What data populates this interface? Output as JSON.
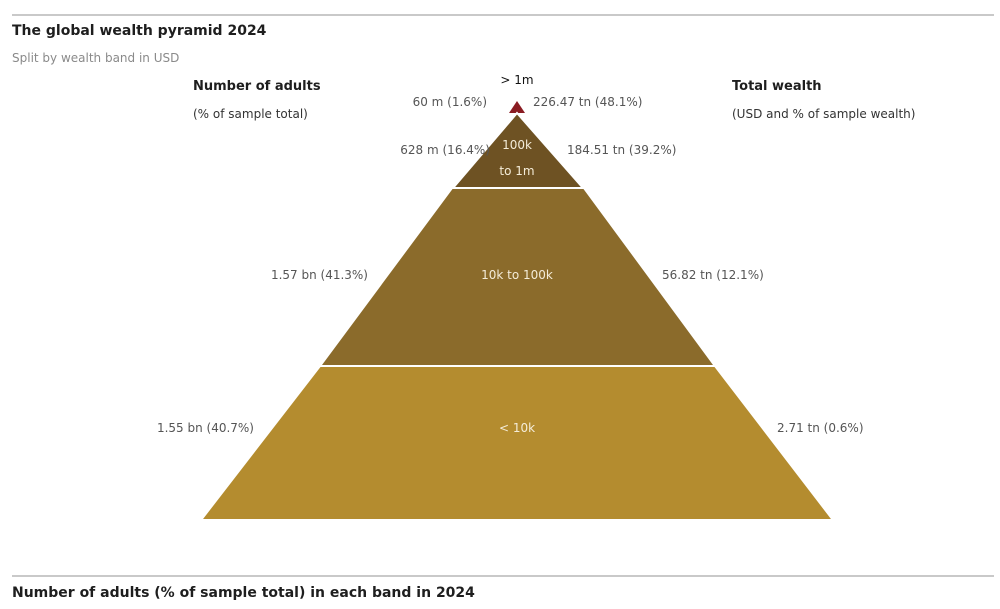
{
  "header": {
    "title": "The global wealth pyramid 2024",
    "subtitle": "Split by wealth band in USD"
  },
  "left_column": {
    "heading": "Number of adults",
    "subheading": "(% of sample total)"
  },
  "right_column": {
    "heading": "Total wealth",
    "subheading": "(USD and % of sample wealth)"
  },
  "footer": {
    "title": "Number of adults (% of sample total) in each band in 2024"
  },
  "chart_data": {
    "type": "pyramid",
    "title": "The global wealth pyramid 2024",
    "subtitle": "Split by wealth band in USD",
    "bands": [
      {
        "band": "> 1m",
        "adults_label": "60 m (1.6%)",
        "adults_millions": 60,
        "adults_pct": 1.6,
        "wealth_label": "226.47 tn (48.1%)",
        "wealth_tn": 226.47,
        "wealth_pct": 48.1,
        "color": "#8a1c22"
      },
      {
        "band": "100k to 1m",
        "band_lines": [
          "100k",
          "to 1m"
        ],
        "adults_label": "628 m (16.4%)",
        "adults_millions": 628,
        "adults_pct": 16.4,
        "wealth_label": "184.51 tn (39.2%)",
        "wealth_tn": 184.51,
        "wealth_pct": 39.2,
        "color": "#6e5223"
      },
      {
        "band": "10k to 100k",
        "adults_label": "1.57 bn (41.3%)",
        "adults_millions": 1570,
        "adults_pct": 41.3,
        "wealth_label": "56.82 tn (12.1%)",
        "wealth_tn": 56.82,
        "wealth_pct": 12.1,
        "color": "#8b6b2b"
      },
      {
        "band": "< 10k",
        "adults_label": "1.55 bn (40.7%)",
        "adults_millions": 1550,
        "adults_pct": 40.7,
        "wealth_label": "2.71 tn (0.6%)",
        "wealth_tn": 2.71,
        "wealth_pct": 0.6,
        "color": "#b48c2f"
      }
    ]
  }
}
